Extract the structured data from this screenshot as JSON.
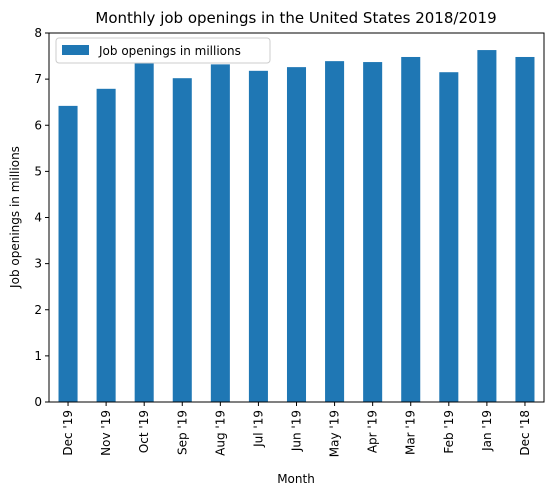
{
  "chart_data": {
    "type": "bar",
    "title": "Monthly job openings in the United States 2018/2019",
    "xlabel": "Month",
    "ylabel": "Job openings in millions",
    "categories": [
      "Dec '19",
      "Nov '19",
      "Oct '19",
      "Sep '19",
      "Aug '19",
      "Jul '19",
      "Jun '19",
      "May '19",
      "Apr '19",
      "Mar '19",
      "Feb '19",
      "Jan '19",
      "Dec '18"
    ],
    "series": [
      {
        "name": "Job openings in millions",
        "values": [
          6.42,
          6.79,
          7.36,
          7.02,
          7.32,
          7.18,
          7.26,
          7.39,
          7.37,
          7.48,
          7.15,
          7.63,
          7.48
        ]
      }
    ],
    "ylim": [
      0,
      8
    ],
    "yticks": [
      0,
      1,
      2,
      3,
      4,
      5,
      6,
      7,
      8
    ],
    "grid": false,
    "legend_position": "top-left",
    "colors": {
      "bar": "#1f77b4"
    }
  }
}
